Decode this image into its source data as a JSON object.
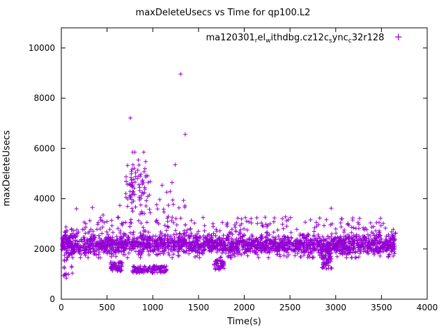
{
  "chart_data": {
    "type": "scatter",
    "title": "maxDeleteUsecs vs Time for qp100.L2",
    "xlabel": "Time(s)",
    "ylabel": "maxDeleteUsecs",
    "xlim": [
      0,
      4000
    ],
    "ylim": [
      0,
      10800
    ],
    "xticks": [
      0,
      500,
      1000,
      1500,
      2000,
      2500,
      3000,
      3500,
      4000
    ],
    "yticks": [
      0,
      2000,
      4000,
      6000,
      8000,
      10000
    ],
    "grid": false,
    "series_color": "#9400d3",
    "legend": {
      "position": "top-right-inside",
      "marker_glyph": "+",
      "label_plain": "ma120301_rel_withdbg.cz12c_sync_c32r128",
      "label_segments": [
        {
          "text": "ma120301",
          "sub": false
        },
        {
          "text": "r",
          "sub": true
        },
        {
          "text": "el",
          "sub": false
        },
        {
          "text": "w",
          "sub": true
        },
        {
          "text": "ithdbg.cz12c",
          "sub": false
        },
        {
          "text": "s",
          "sub": true
        },
        {
          "text": "ync",
          "sub": false
        },
        {
          "text": "c",
          "sub": true
        },
        {
          "text": "32r128",
          "sub": false
        }
      ]
    },
    "point_clusters": [
      {
        "name": "main-band",
        "n": 2000,
        "x": [
          5,
          3660
        ],
        "y_dist": "normal",
        "y_mean": 2150,
        "y_sd": 200,
        "y_clip": [
          1650,
          3050
        ]
      },
      {
        "name": "upper-band",
        "n": 260,
        "x": [
          5,
          3660
        ],
        "y_dist": "normal",
        "y_mean": 2500,
        "y_sd": 280,
        "y_clip": [
          1700,
          3350
        ]
      },
      {
        "name": "band-top-sparse",
        "n": 90,
        "x": [
          20,
          3640
        ],
        "y_dist": "uniform",
        "y": [
          2750,
          3250
        ]
      },
      {
        "name": "start-spread",
        "n": 40,
        "x": [
          8,
          130
        ],
        "y_dist": "uniform",
        "y": [
          900,
          3050
        ]
      },
      {
        "name": "dip-1",
        "n": 60,
        "x": [
          540,
          670
        ],
        "y_dist": "uniform",
        "y": [
          1100,
          1500
        ]
      },
      {
        "name": "dip-2",
        "n": 120,
        "x": [
          780,
          1150
        ],
        "y_dist": "uniform",
        "y": [
          1050,
          1320
        ]
      },
      {
        "name": "dip-3",
        "n": 45,
        "x": [
          1670,
          1780
        ],
        "y_dist": "uniform",
        "y": [
          1150,
          1600
        ]
      },
      {
        "name": "dip-4",
        "n": 70,
        "x": [
          2840,
          2960
        ],
        "y_dist": "uniform",
        "y": [
          1200,
          2000
        ]
      },
      {
        "name": "spike-cluster",
        "n": 85,
        "x": [
          700,
          950
        ],
        "y_dist": "normal",
        "y_mean": 4500,
        "y_sd": 650,
        "y_clip": [
          3200,
          5850
        ]
      },
      {
        "name": "mid-spikes",
        "n": 30,
        "x": [
          950,
          1400
        ],
        "y_dist": "uniform",
        "y": [
          2700,
          4700
        ]
      }
    ],
    "outliers": [
      [
        755,
        7210
      ],
      [
        1305,
        8960
      ],
      [
        1355,
        6560
      ],
      [
        1245,
        5350
      ],
      [
        640,
        3730
      ],
      [
        340,
        3650
      ],
      [
        165,
        3600
      ],
      [
        2450,
        3280
      ],
      [
        2950,
        3620
      ],
      [
        3185,
        3150
      ],
      [
        2050,
        3080
      ],
      [
        1550,
        3250
      ],
      [
        55,
        840
      ],
      [
        78,
        990
      ],
      [
        3620,
        2500
      ]
    ]
  }
}
